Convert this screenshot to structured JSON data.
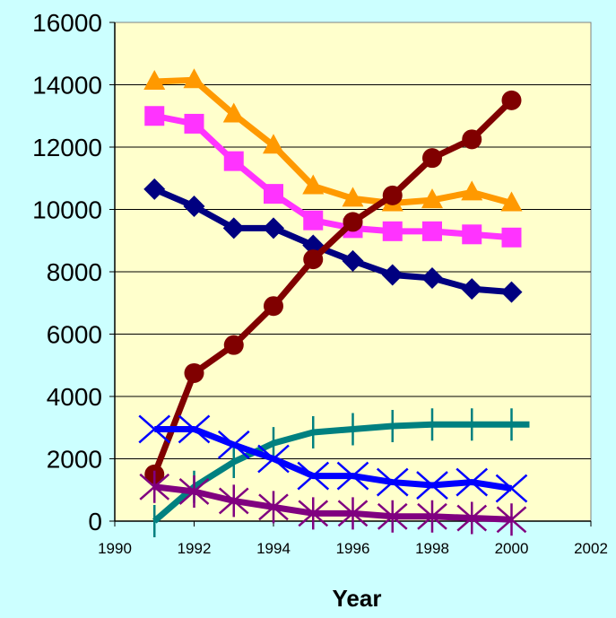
{
  "chart_data": {
    "type": "line",
    "title": "",
    "xlabel": "Year",
    "ylabel": "",
    "xlim": [
      1990,
      2002
    ],
    "ylim": [
      0,
      16000
    ],
    "x_ticks": [
      "1990",
      "1992",
      "1994",
      "1996",
      "1998",
      "2000",
      "2002"
    ],
    "y_ticks": [
      "0",
      "2000",
      "4000",
      "6000",
      "8000",
      "10000",
      "12000",
      "14000",
      "16000"
    ],
    "grid": "horizontal",
    "legend": "none",
    "plot_background": "#ffffcc",
    "page_background": "#ccffff",
    "x": [
      1991,
      1992,
      1993,
      1994,
      1995,
      1996,
      1997,
      1998,
      1999,
      2000
    ],
    "series": [
      {
        "color": "#ff9900",
        "marker": "triangle",
        "values": [
          14100,
          14150,
          13050,
          12050,
          10750,
          10350,
          10200,
          10300,
          10550,
          10200
        ]
      },
      {
        "color": "#ff33ff",
        "marker": "square",
        "values": [
          13000,
          12750,
          11550,
          10500,
          9650,
          9400,
          9300,
          9300,
          9200,
          9100
        ]
      },
      {
        "color": "#000080",
        "marker": "diamond",
        "values": [
          10650,
          10100,
          9400,
          9400,
          8850,
          8350,
          7900,
          7800,
          7450,
          7350
        ]
      },
      {
        "color": "#800000",
        "marker": "circle",
        "values": [
          1500,
          4750,
          5650,
          6900,
          8400,
          9600,
          10450,
          11650,
          12250,
          13500
        ]
      },
      {
        "color": "#008080",
        "marker": "plus",
        "values": [
          0,
          1100,
          1900,
          2500,
          2850,
          2950,
          3050,
          3100,
          3100,
          3100
        ]
      },
      {
        "color": "#0000ff",
        "marker": "x",
        "values": [
          2950,
          2950,
          2450,
          2000,
          1450,
          1450,
          1250,
          1150,
          1250,
          1050
        ]
      },
      {
        "color": "#800080",
        "marker": "star",
        "values": [
          1100,
          950,
          650,
          450,
          250,
          250,
          150,
          150,
          100,
          50
        ]
      }
    ]
  }
}
